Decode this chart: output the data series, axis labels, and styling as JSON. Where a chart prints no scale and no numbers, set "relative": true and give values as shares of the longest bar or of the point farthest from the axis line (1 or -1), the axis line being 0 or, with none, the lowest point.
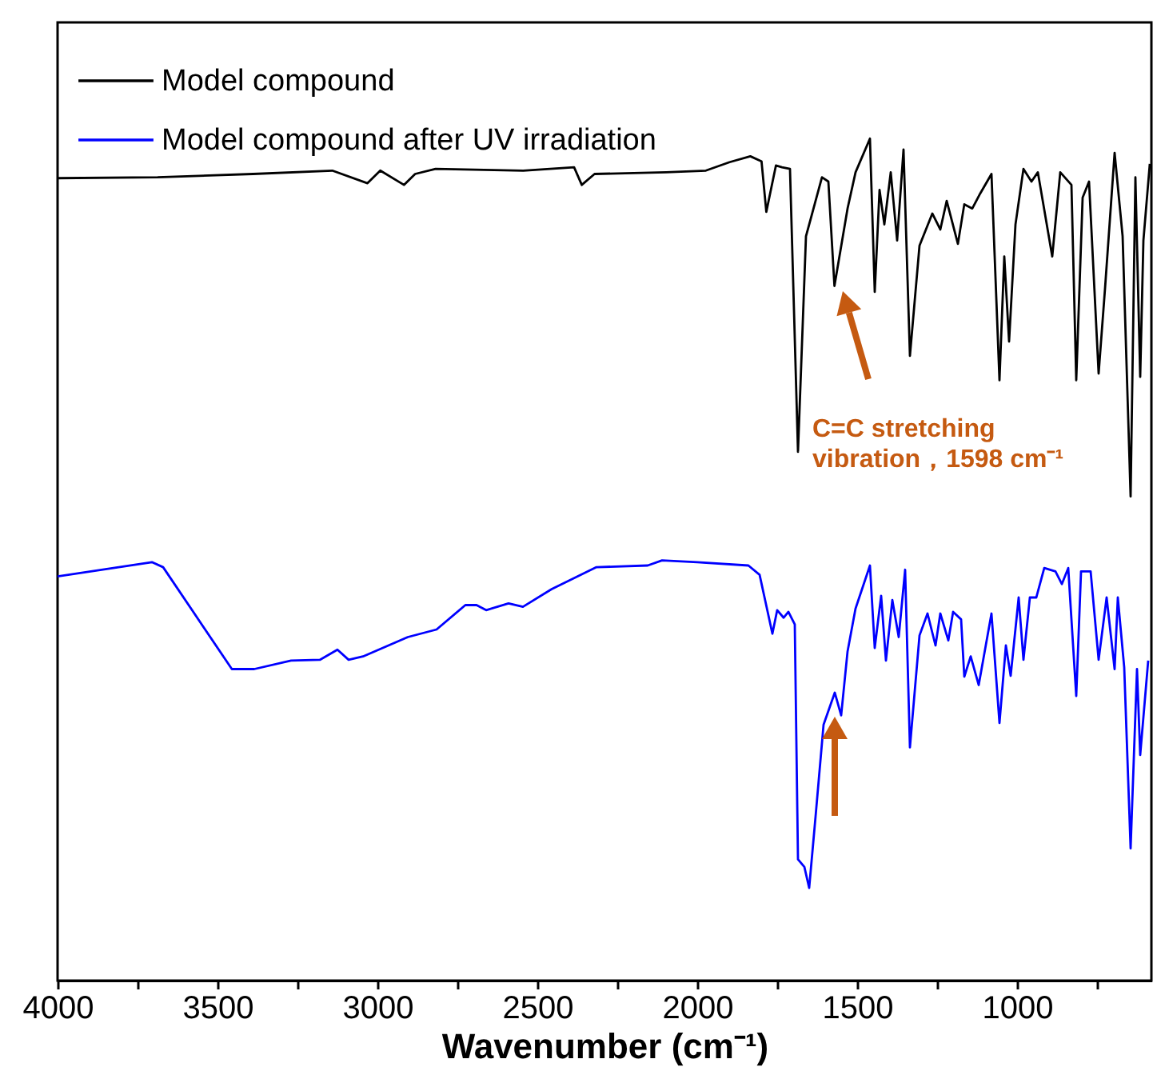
{
  "chart_data": {
    "type": "line",
    "relative": true,
    "xlabel": "Wavenumber (cm⁻¹)",
    "xlim": [
      4000,
      580
    ],
    "xticks": [
      4000,
      {
        "value": 3750,
        "label": null
      },
      3500,
      {
        "value": 3250,
        "label": null
      },
      3000,
      {
        "value": 2750,
        "label": null
      },
      2500,
      {
        "value": 2250,
        "label": null
      },
      2000,
      {
        "value": 1750,
        "label": null
      },
      1500,
      {
        "value": 1250,
        "label": null
      },
      1000,
      {
        "value": 750,
        "label": null
      }
    ],
    "legend": "top left",
    "series": [
      {
        "name": "Model compound",
        "color": "#000000",
        "x": [
          4000,
          3687,
          3389,
          3141,
          3031,
          2991,
          2917,
          2882,
          2818,
          2544,
          2385,
          2361,
          2321,
          2097,
          1973,
          1899,
          1834,
          1799,
          1784,
          1754,
          1735,
          1710,
          1685,
          1660,
          1610,
          1590,
          1571,
          1530,
          1505,
          1460,
          1445,
          1430,
          1415,
          1395,
          1375,
          1355,
          1335,
          1305,
          1265,
          1240,
          1220,
          1185,
          1165,
          1140,
          1115,
          1080,
          1055,
          1040,
          1025,
          1005,
          980,
          955,
          935,
          890,
          865,
          830,
          815,
          795,
          775,
          745,
          725,
          695,
          670,
          645,
          630,
          615,
          605,
          585
        ],
        "values": [
          0.953,
          0.954,
          0.958,
          0.962,
          0.947,
          0.962,
          0.945,
          0.958,
          0.964,
          0.962,
          0.966,
          0.945,
          0.958,
          0.96,
          0.962,
          0.972,
          0.979,
          0.973,
          0.913,
          0.968,
          0.966,
          0.964,
          0.628,
          0.884,
          0.954,
          0.949,
          0.825,
          0.917,
          0.96,
          1,
          0.818,
          0.939,
          0.898,
          0.96,
          0.879,
          0.987,
          0.742,
          0.873,
          0.911,
          0.892,
          0.926,
          0.875,
          0.922,
          0.917,
          0.935,
          0.958,
          0.713,
          0.86,
          0.759,
          0.898,
          0.964,
          0.949,
          0.96,
          0.86,
          0.96,
          0.945,
          0.713,
          0.93,
          0.949,
          0.721,
          0.822,
          0.983,
          0.884,
          0.575,
          0.954,
          0.717,
          0.879,
          0.97
        ]
      },
      {
        "name": "Model compound after UV irradiation",
        "color": "#0000ff",
        "x": [
          4000,
          3705,
          3670,
          3455,
          3385,
          3270,
          3180,
          3125,
          3090,
          3045,
          2905,
          2815,
          2725,
          2690,
          2660,
          2590,
          2545,
          2455,
          2315,
          2155,
          2110,
          2000,
          1840,
          1805,
          1765,
          1750,
          1730,
          1715,
          1695,
          1685,
          1665,
          1650,
          1630,
          1605,
          1570,
          1550,
          1530,
          1505,
          1460,
          1445,
          1425,
          1410,
          1390,
          1370,
          1350,
          1335,
          1305,
          1280,
          1255,
          1240,
          1215,
          1200,
          1175,
          1165,
          1145,
          1120,
          1080,
          1055,
          1035,
          1020,
          995,
          980,
          960,
          940,
          915,
          880,
          860,
          840,
          815,
          800,
          770,
          745,
          720,
          695,
          685,
          665,
          645,
          625,
          615,
          590
        ],
        "values": [
          0.48,
          0.497,
          0.491,
          0.37,
          0.37,
          0.38,
          0.381,
          0.393,
          0.381,
          0.385,
          0.408,
          0.417,
          0.446,
          0.446,
          0.44,
          0.448,
          0.444,
          0.465,
          0.491,
          0.493,
          0.499,
          0.497,
          0.493,
          0.482,
          0.412,
          0.44,
          0.431,
          0.438,
          0.423,
          0.144,
          0.135,
          0.11,
          0.195,
          0.304,
          0.342,
          0.315,
          0.391,
          0.442,
          0.493,
          0.395,
          0.457,
          0.38,
          0.452,
          0.408,
          0.488,
          0.277,
          0.41,
          0.436,
          0.398,
          0.436,
          0.404,
          0.438,
          0.429,
          0.361,
          0.385,
          0.351,
          0.436,
          0.306,
          0.398,
          0.362,
          0.455,
          0.381,
          0.455,
          0.455,
          0.49,
          0.486,
          0.471,
          0.49,
          0.338,
          0.486,
          0.486,
          0.381,
          0.455,
          0.37,
          0.455,
          0.372,
          0.157,
          0.37,
          0.268,
          0.38
        ]
      }
    ],
    "annotations": [
      "C=C stretching vibration，1598 cm⁻¹"
    ]
  }
}
